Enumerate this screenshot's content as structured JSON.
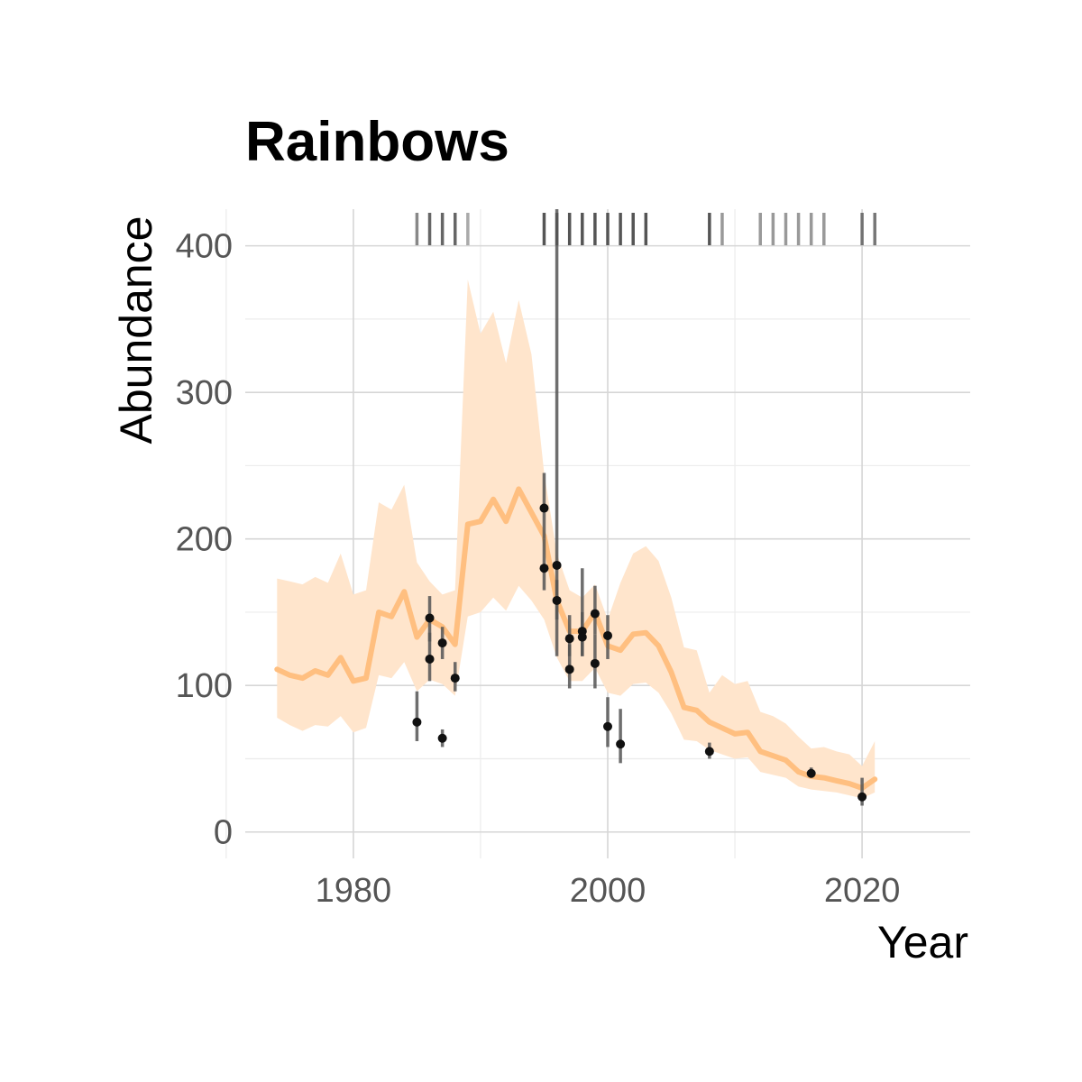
{
  "chart_data": {
    "type": "line",
    "title": "Rainbows",
    "xlabel": "Year",
    "ylabel": "Abundance",
    "xlim": [
      1971.5,
      2028.5
    ],
    "ylim": [
      -18,
      425
    ],
    "x_ticks": [
      1980,
      2000,
      2020
    ],
    "y_ticks": [
      0,
      100,
      200,
      300,
      400
    ],
    "x_minor_grid": [
      1970,
      1990,
      2010
    ],
    "y_minor_grid": [
      50,
      150,
      250,
      350
    ],
    "grid": true,
    "legend": "none",
    "colors": {
      "line": "#ffbf80",
      "ribbon": "#ffe5cc",
      "points": "#111111",
      "errorbars": "#555555",
      "rug": "#555555"
    },
    "trend": {
      "x": [
        1974,
        1975,
        1976,
        1977,
        1978,
        1979,
        1980,
        1981,
        1982,
        1983,
        1984,
        1985,
        1986,
        1987,
        1988,
        1989,
        1990,
        1991,
        1992,
        1993,
        1994,
        1995,
        1996,
        1997,
        1998,
        1999,
        2000,
        2001,
        2002,
        2003,
        2004,
        2005,
        2006,
        2007,
        2008,
        2009,
        2010,
        2011,
        2012,
        2013,
        2014,
        2015,
        2016,
        2017,
        2018,
        2019,
        2020,
        2021
      ],
      "y": [
        111,
        107,
        105,
        110,
        107,
        119,
        103,
        105,
        150,
        147,
        164,
        133,
        145,
        140,
        128,
        210,
        212,
        227,
        212,
        234,
        218,
        202,
        158,
        137,
        137,
        150,
        127,
        124,
        135,
        136,
        127,
        109,
        85,
        83,
        75,
        71,
        67,
        68,
        55,
        52,
        49,
        41,
        38,
        37,
        35,
        33,
        30,
        36
      ],
      "lower": [
        78,
        73,
        69,
        73,
        72,
        79,
        68,
        71,
        107,
        105,
        116,
        96,
        104,
        101,
        93,
        147,
        150,
        160,
        151,
        168,
        158,
        145,
        119,
        103,
        103,
        112,
        95,
        93,
        101,
        102,
        95,
        81,
        63,
        62,
        56,
        53,
        50,
        51,
        41,
        39,
        37,
        31,
        29,
        28,
        27,
        25,
        23,
        27
      ],
      "upper": [
        173,
        171,
        169,
        174,
        170,
        190,
        162,
        165,
        225,
        220,
        237,
        184,
        171,
        162,
        165,
        377,
        340,
        355,
        320,
        363,
        326,
        245,
        190,
        165,
        160,
        169,
        145,
        170,
        190,
        195,
        185,
        160,
        126,
        124,
        95,
        107,
        101,
        103,
        82,
        79,
        74,
        65,
        57,
        58,
        55,
        53,
        45,
        62
      ]
    },
    "observations": [
      {
        "x": 1985,
        "y": 75,
        "lo": 62,
        "hi": 96
      },
      {
        "x": 1986,
        "y": 146,
        "lo": 130,
        "hi": 161
      },
      {
        "x": 1986,
        "y": 118,
        "lo": 103,
        "hi": 136
      },
      {
        "x": 1987,
        "y": 129,
        "lo": 118,
        "hi": 140
      },
      {
        "x": 1987,
        "y": 64,
        "lo": 58,
        "hi": 70
      },
      {
        "x": 1988,
        "y": 105,
        "lo": 96,
        "hi": 116
      },
      {
        "x": 1995,
        "y": 221,
        "lo": 200,
        "hi": 245
      },
      {
        "x": 1995,
        "y": 180,
        "lo": 165,
        "hi": 200
      },
      {
        "x": 1996,
        "y": 182,
        "lo": 120,
        "hi": 425
      },
      {
        "x": 1996,
        "y": 158,
        "lo": 145,
        "hi": 172
      },
      {
        "x": 1997,
        "y": 132,
        "lo": 120,
        "hi": 148
      },
      {
        "x": 1997,
        "y": 111,
        "lo": 98,
        "hi": 128
      },
      {
        "x": 1998,
        "y": 137,
        "lo": 120,
        "hi": 180
      },
      {
        "x": 1998,
        "y": 133,
        "lo": 120,
        "hi": 150
      },
      {
        "x": 1999,
        "y": 149,
        "lo": 135,
        "hi": 168
      },
      {
        "x": 1999,
        "y": 115,
        "lo": 98,
        "hi": 135
      },
      {
        "x": 2000,
        "y": 134,
        "lo": 118,
        "hi": 148
      },
      {
        "x": 2000,
        "y": 72,
        "lo": 58,
        "hi": 92
      },
      {
        "x": 2001,
        "y": 60,
        "lo": 47,
        "hi": 84
      },
      {
        "x": 2008,
        "y": 55,
        "lo": 50,
        "hi": 61
      },
      {
        "x": 2016,
        "y": 40,
        "lo": 37,
        "hi": 44
      },
      {
        "x": 2020,
        "y": 24,
        "lo": 18,
        "hi": 37
      }
    ],
    "rug_years": [
      1985,
      1986,
      1987,
      1988,
      1989,
      1995,
      1996,
      1997,
      1998,
      1999,
      2000,
      2001,
      2002,
      2003,
      2008,
      2009,
      2012,
      2013,
      2014,
      2015,
      2016,
      2017,
      2020,
      2021
    ],
    "rug_levels": [
      0.7,
      0.9,
      0.9,
      0.9,
      0.5,
      1,
      1,
      1,
      1,
      1,
      1,
      1,
      1,
      1,
      1,
      0.6,
      0.6,
      0.6,
      0.6,
      0.6,
      0.6,
      0.6,
      0.8,
      0.8
    ]
  }
}
